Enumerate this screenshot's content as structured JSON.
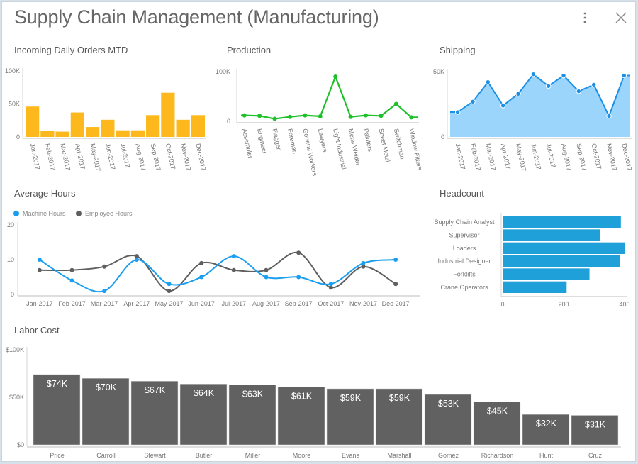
{
  "header": {
    "title": "Supply Chain Management (Manufacturing)",
    "more_icon": "more-vertical-icon",
    "close_icon": "close-icon"
  },
  "chart_data": [
    {
      "id": "orders",
      "type": "bar",
      "title": "Incoming Daily Orders MTD",
      "categories": [
        "Jan-2017",
        "Feb-2017",
        "Mar-2017",
        "Apr-2017",
        "May-2017",
        "Jun-2017",
        "Jul-2017",
        "Aug-2017",
        "Sep-2017",
        "Oct-2017",
        "Nov-2017",
        "Dec-2017"
      ],
      "values": [
        46000,
        9000,
        8000,
        37000,
        15000,
        26000,
        10000,
        10000,
        33000,
        67000,
        26000,
        33000
      ],
      "ylim": [
        0,
        100000
      ],
      "yticks": [
        {
          "v": 0,
          "label": "0"
        },
        {
          "v": 50000,
          "label": "50K"
        },
        {
          "v": 100000,
          "label": "100K"
        }
      ],
      "color": "#fdb81e",
      "xlabel": "",
      "ylabel": ""
    },
    {
      "id": "production",
      "type": "line",
      "title": "Production",
      "categories": [
        "Assembler",
        "Engineer",
        "Flagger",
        "Foreman",
        "General Workers",
        "Lawyers",
        "Light Industrial",
        "Metal Welder",
        "Painters",
        "Sheet Metal",
        "Switchman",
        "Window Fitters"
      ],
      "values": [
        12000,
        11000,
        5000,
        9000,
        12000,
        10000,
        90000,
        9000,
        12000,
        11000,
        35000,
        8000
      ],
      "ylim": [
        0,
        100000
      ],
      "yticks": [
        {
          "v": 0,
          "label": "0"
        },
        {
          "v": 100000,
          "label": "100K"
        }
      ],
      "color": "#1fc12a",
      "xlabel": "",
      "ylabel": ""
    },
    {
      "id": "shipping",
      "type": "area",
      "title": "Shipping",
      "categories": [
        "Jan-2017",
        "Feb-2017",
        "Mar-2017",
        "Apr-2017",
        "May-2017",
        "Jun-2017",
        "Jul-2017",
        "Aug-2017",
        "Sep-2017",
        "Oct-2017",
        "Nov-2017",
        "Dec-2017"
      ],
      "values": [
        19000,
        27000,
        42000,
        24000,
        33000,
        48000,
        39000,
        47000,
        35000,
        40000,
        16000,
        47000
      ],
      "ylim": [
        0,
        50000
      ],
      "yticks": [
        {
          "v": 0,
          "label": "0"
        },
        {
          "v": 50000,
          "label": "50K"
        }
      ],
      "color": "#1b90e6",
      "fill": "#9bd5fb",
      "xlabel": "",
      "ylabel": ""
    },
    {
      "id": "hours",
      "type": "line",
      "title": "Average Hours",
      "categories": [
        "Jan-2017",
        "Feb-2017",
        "Mar-2017",
        "Apr-2017",
        "May-2017",
        "Jun-2017",
        "Jul-2017",
        "Aug-2017",
        "Sep-2017",
        "Oct-2017",
        "Nov-2017",
        "Dec-2017"
      ],
      "series": [
        {
          "name": "Machine Hours",
          "color": "#1a9ef0",
          "values": [
            10,
            4,
            1,
            10,
            3,
            5,
            11,
            5,
            5,
            3,
            9,
            10
          ]
        },
        {
          "name": "Employee Hours",
          "color": "#5f5f5f",
          "values": [
            7,
            7,
            8,
            11,
            1,
            9,
            7,
            7,
            12,
            2,
            8,
            3
          ]
        }
      ],
      "ylim": [
        0,
        20
      ],
      "yticks": [
        {
          "v": 0,
          "label": "0"
        },
        {
          "v": 10,
          "label": "10"
        },
        {
          "v": 20,
          "label": "20"
        }
      ],
      "legend": "top-left",
      "xlabel": "",
      "ylabel": ""
    },
    {
      "id": "headcount",
      "type": "bar",
      "orientation": "horizontal",
      "title": "Headcount",
      "categories": [
        "Supply Chain Analyst",
        "Supervisor",
        "Loaders",
        "Industrial Designer",
        "Forklifts",
        "Crane Operators"
      ],
      "values": [
        388,
        320,
        400,
        385,
        285,
        210
      ],
      "xlim": [
        0,
        400
      ],
      "xticks": [
        {
          "v": 0,
          "label": "0"
        },
        {
          "v": 200,
          "label": "200"
        },
        {
          "v": 400,
          "label": "400"
        }
      ],
      "color": "#20a0d8",
      "xlabel": "",
      "ylabel": ""
    },
    {
      "id": "labor",
      "type": "bar",
      "title": "Labor Cost",
      "categories": [
        "Price",
        "Carroll",
        "Stewart",
        "Butler",
        "Miller",
        "Moore",
        "Evans",
        "Marshall",
        "Gomez",
        "Richardson",
        "Hunt",
        "Cruz"
      ],
      "values": [
        74000,
        70000,
        67000,
        64000,
        63000,
        61000,
        59000,
        59000,
        53000,
        45000,
        32000,
        31000
      ],
      "data_labels": [
        "$74K",
        "$70K",
        "$67K",
        "$64K",
        "$63K",
        "$61K",
        "$59K",
        "$59K",
        "$53K",
        "$45K",
        "$32K",
        "$31K"
      ],
      "ylim": [
        0,
        100000
      ],
      "yticks": [
        {
          "v": 0,
          "label": "$0"
        },
        {
          "v": 50000,
          "label": "$50K"
        },
        {
          "v": 100000,
          "label": "$100K"
        }
      ],
      "color": "#616161",
      "xlabel": "",
      "ylabel": ""
    }
  ]
}
